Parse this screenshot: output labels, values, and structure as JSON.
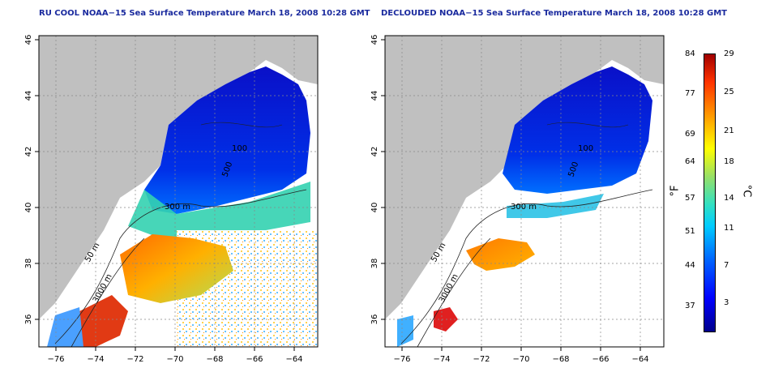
{
  "titles": {
    "left": "RU COOL NOAA−15 Sea Surface Temperature March 18, 2008 10:28 GMT",
    "right": "DECLOUDED NOAA−15 Sea Surface Temperature March 18, 2008 10:28 GMT"
  },
  "axes": {
    "lon_ticks": [
      "−76",
      "−74",
      "−72",
      "−70",
      "−68",
      "−66",
      "−64"
    ],
    "lat_ticks": [
      "36",
      "38",
      "40",
      "42",
      "44",
      "46"
    ]
  },
  "contours": {
    "left": [
      "50 m",
      "3000 m",
      "300 m",
      "100",
      "500"
    ],
    "right": [
      "50 m",
      "3000 m",
      "300 m",
      "500",
      "100"
    ]
  },
  "colorbar": {
    "fahrenheit_ticks": [
      "84",
      "77",
      "69",
      "64",
      "57",
      "51",
      "44",
      "37"
    ],
    "celsius_ticks": [
      "29",
      "25",
      "21",
      "18",
      "14",
      "11",
      "7",
      "3"
    ],
    "fahrenheit_unit": "°F",
    "celsius_unit": "°C"
  },
  "colors": {
    "land": "#c0c0c0",
    "cold": "#0000cc",
    "warm": "#ff3300",
    "title": "#1a2a9e"
  }
}
